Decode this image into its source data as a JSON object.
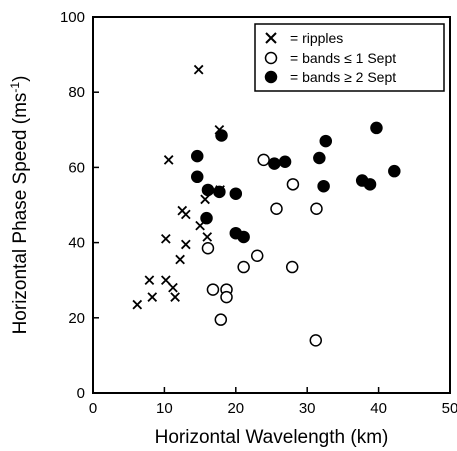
{
  "chart_data": {
    "type": "scatter",
    "xlabel": "Horizontal Wavelength (km)",
    "ylabel_main": "Horizontal Phase Speed (ms",
    "ylabel_sup": "-1",
    "ylabel_close": ")",
    "xlim": [
      0,
      50
    ],
    "ylim": [
      0,
      100
    ],
    "xticks": [
      0,
      10,
      20,
      30,
      40,
      50
    ],
    "yticks": [
      0,
      20,
      40,
      60,
      80,
      100
    ],
    "grid": false,
    "legend_position": "top-right",
    "series": [
      {
        "name": "= ripples",
        "marker": "x",
        "color": "#000000",
        "points": [
          [
            6.2,
            23.5
          ],
          [
            7.9,
            30
          ],
          [
            8.3,
            25.5
          ],
          [
            10.2,
            41
          ],
          [
            10.2,
            30
          ],
          [
            11.2,
            28
          ],
          [
            11.5,
            25.5
          ],
          [
            12.2,
            35.5
          ],
          [
            12.5,
            48.5
          ],
          [
            13.0,
            47.5
          ],
          [
            13.0,
            39.5
          ],
          [
            15.0,
            44.5
          ],
          [
            15.7,
            51.5
          ],
          [
            16.0,
            41.5
          ],
          [
            17.8,
            54
          ],
          [
            10.6,
            62
          ],
          [
            14.8,
            86
          ],
          [
            17.7,
            70
          ]
        ]
      },
      {
        "name": "= bands ≤ 1 Sept",
        "marker": "open-circle",
        "color": "#000000",
        "points": [
          [
            16.1,
            38.5
          ],
          [
            16.8,
            27.5
          ],
          [
            17.9,
            19.5
          ],
          [
            18.7,
            27.5
          ],
          [
            18.7,
            25.5
          ],
          [
            21.1,
            33.5
          ],
          [
            23.0,
            36.5
          ],
          [
            23.9,
            62
          ],
          [
            25.7,
            49
          ],
          [
            27.9,
            33.5
          ],
          [
            28.0,
            55.5
          ],
          [
            31.3,
            49
          ],
          [
            31.2,
            14
          ]
        ]
      },
      {
        "name": "= bands ≥ 2 Sept",
        "marker": "filled-circle",
        "color": "#000000",
        "points": [
          [
            14.6,
            63
          ],
          [
            14.6,
            57.5
          ],
          [
            15.9,
            46.5
          ],
          [
            16.1,
            54
          ],
          [
            17.7,
            53.5
          ],
          [
            18.0,
            68.5
          ],
          [
            20.0,
            53
          ],
          [
            20.0,
            42.5
          ],
          [
            21.1,
            41.5
          ],
          [
            25.4,
            61
          ],
          [
            26.9,
            61.5
          ],
          [
            31.7,
            62.5
          ],
          [
            32.3,
            55
          ],
          [
            32.6,
            67
          ],
          [
            37.7,
            56.5
          ],
          [
            38.8,
            55.5
          ],
          [
            39.7,
            70.5
          ],
          [
            42.2,
            59
          ]
        ]
      }
    ]
  }
}
